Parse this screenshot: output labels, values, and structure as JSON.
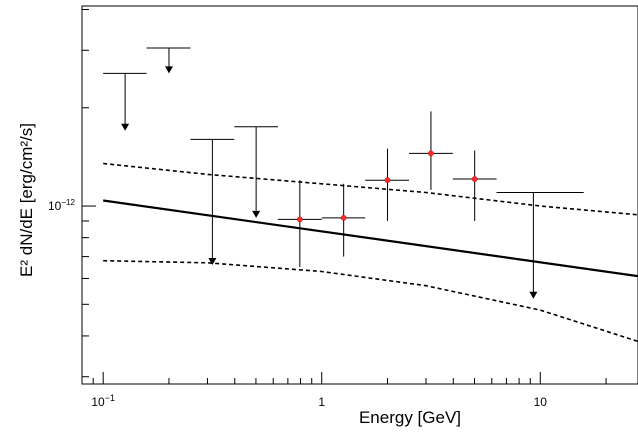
{
  "chart_data": {
    "type": "scatter",
    "title": "",
    "xlabel": "Energy [GeV]",
    "ylabel": "E² dN/dE [erg/cm²/s]",
    "x_scale": "log",
    "y_scale": "log",
    "xlim": [
      0.08,
      28
    ],
    "ylim": [
      2.85e-13,
      4.1e-12
    ],
    "grid": false,
    "x_tick_labels": [
      {
        "value": 0.1,
        "base": "10",
        "exp": "−1"
      },
      {
        "value": 1,
        "base": "1",
        "exp": ""
      },
      {
        "value": 10,
        "base": "10",
        "exp": ""
      }
    ],
    "y_tick_labels": [
      {
        "value": 1e-12,
        "base": "10",
        "exp": "−12"
      }
    ],
    "data_points": [
      {
        "x": 0.794,
        "xlo": 0.63,
        "xhi": 1.0,
        "y": 9.1e-13,
        "ylo": 6.5e-13,
        "yhi": 1.2e-12
      },
      {
        "x": 1.26,
        "xlo": 1.0,
        "xhi": 1.58,
        "y": 9.2e-13,
        "ylo": 7e-13,
        "yhi": 1.17e-12
      },
      {
        "x": 2.0,
        "xlo": 1.58,
        "xhi": 2.51,
        "y": 1.2e-12,
        "ylo": 9e-13,
        "yhi": 1.5e-12
      },
      {
        "x": 3.16,
        "xlo": 2.51,
        "xhi": 3.98,
        "y": 1.45e-12,
        "ylo": 1.12e-12,
        "yhi": 1.95e-12
      },
      {
        "x": 5.01,
        "xlo": 3.98,
        "xhi": 6.31,
        "y": 1.21e-12,
        "ylo": 9e-13,
        "yhi": 1.48e-12
      }
    ],
    "upper_limits": [
      {
        "x": 0.126,
        "xlo": 0.1,
        "xhi": 0.158,
        "y": 2.55e-12,
        "y_arrow_end": 1.7e-12
      },
      {
        "x": 0.2,
        "xlo": 0.158,
        "xhi": 0.251,
        "y": 3.05e-12,
        "y_arrow_end": 2.55e-12
      },
      {
        "x": 0.316,
        "xlo": 0.251,
        "xhi": 0.398,
        "y": 1.6e-12,
        "y_arrow_end": 6.6e-13
      },
      {
        "x": 0.501,
        "xlo": 0.398,
        "xhi": 0.631,
        "y": 1.75e-12,
        "y_arrow_end": 9.2e-13
      },
      {
        "x": 9.3,
        "xlo": 6.31,
        "xhi": 15.8,
        "y": 1.1e-12,
        "y_arrow_end": 5.2e-13
      }
    ],
    "best_fit": {
      "x": [
        0.1,
        28
      ],
      "y": [
        1.04e-12,
        6.1e-13
      ]
    },
    "confidence_band_upper": {
      "x": [
        0.1,
        0.3,
        1,
        3,
        10,
        28
      ],
      "y": [
        1.35e-12,
        1.25e-12,
        1.17e-12,
        1.1e-12,
        1e-12,
        9.4e-13
      ]
    },
    "confidence_band_lower": {
      "x": [
        0.1,
        0.3,
        1,
        3,
        10,
        28
      ],
      "y": [
        6.8e-13,
        6.7e-13,
        6.3e-13,
        5.7e-13,
        4.8e-13,
        3.85e-13
      ]
    }
  }
}
